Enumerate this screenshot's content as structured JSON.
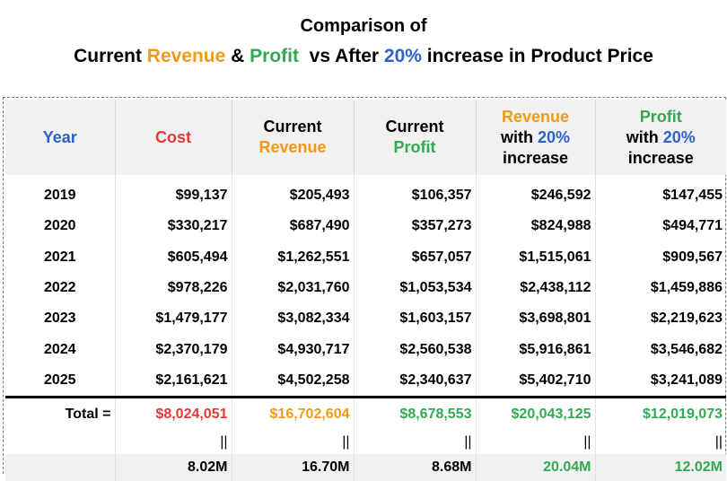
{
  "title": {
    "line1": "Comparison of",
    "part_current": "Current ",
    "part_revenue": "Revenue",
    "part_amp": " & ",
    "part_profit": "Profit",
    "part_vs": "  vs After ",
    "part_pct": "20%",
    "part_rest": " increase in Product Price"
  },
  "headers": {
    "year": "Year",
    "cost": "Cost",
    "cur_rev_1": "Current",
    "cur_rev_2": "Revenue",
    "cur_prof_1": "Current",
    "cur_prof_2": "Profit",
    "rev20_1": "Revenue",
    "rev20_2a": "with ",
    "rev20_2b": "20%",
    "rev20_3": "increase",
    "prof20_1": "Profit",
    "prof20_2a": "with ",
    "prof20_2b": "20%",
    "prof20_3": "increase"
  },
  "rows": [
    {
      "year": "2019",
      "cost": "$99,137",
      "rev": "$205,493",
      "profit": "$106,357",
      "rev20": "$246,592",
      "profit20": "$147,455"
    },
    {
      "year": "2020",
      "cost": "$330,217",
      "rev": "$687,490",
      "profit": "$357,273",
      "rev20": "$824,988",
      "profit20": "$494,771"
    },
    {
      "year": "2021",
      "cost": "$605,494",
      "rev": "$1,262,551",
      "profit": "$657,057",
      "rev20": "$1,515,061",
      "profit20": "$909,567"
    },
    {
      "year": "2022",
      "cost": "$978,226",
      "rev": "$2,031,760",
      "profit": "$1,053,534",
      "rev20": "$2,438,112",
      "profit20": "$1,459,886"
    },
    {
      "year": "2023",
      "cost": "$1,479,177",
      "rev": "$3,082,334",
      "profit": "$1,603,157",
      "rev20": "$3,698,801",
      "profit20": "$2,219,623"
    },
    {
      "year": "2024",
      "cost": "$2,370,179",
      "rev": "$4,930,717",
      "profit": "$2,560,538",
      "rev20": "$5,916,861",
      "profit20": "$3,546,682"
    },
    {
      "year": "2025",
      "cost": "$2,161,621",
      "rev": "$4,502,258",
      "profit": "$2,340,637",
      "rev20": "$5,402,710",
      "profit20": "$3,241,089"
    }
  ],
  "totals": {
    "label": "Total =",
    "cost": "$8,024,051",
    "rev": "$16,702,604",
    "profit": "$8,678,553",
    "rev20": "$20,043,125",
    "profit20": "$12,019,073"
  },
  "equals_symbol": "||",
  "millions": {
    "cost": "8.02M",
    "rev": "16.70M",
    "profit": "8.68M",
    "rev20": "20.04M",
    "profit20": "12.02M"
  },
  "colors": {
    "blue": "#2d62c9",
    "orange": "#f29a17",
    "green": "#34a853",
    "red": "#e53935"
  },
  "chart_data": {
    "type": "table",
    "title": "Comparison of Current Revenue & Profit vs After 20% increase in Product Price",
    "columns": [
      "Year",
      "Cost",
      "Current Revenue",
      "Current Profit",
      "Revenue with 20% increase",
      "Profit with 20% increase"
    ],
    "categories": [
      "2019",
      "2020",
      "2021",
      "2022",
      "2023",
      "2024",
      "2025"
    ],
    "series": [
      {
        "name": "Cost",
        "values": [
          99137,
          330217,
          605494,
          978226,
          1479177,
          2370179,
          2161621
        ]
      },
      {
        "name": "Current Revenue",
        "values": [
          205493,
          687490,
          1262551,
          2031760,
          3082334,
          4930717,
          4502258
        ]
      },
      {
        "name": "Current Profit",
        "values": [
          106357,
          357273,
          657057,
          1053534,
          1603157,
          2560538,
          2340637
        ]
      },
      {
        "name": "Revenue with 20% increase",
        "values": [
          246592,
          824988,
          1515061,
          2438112,
          3698801,
          5916861,
          5402710
        ]
      },
      {
        "name": "Profit with 20% increase",
        "values": [
          147455,
          494771,
          909567,
          1459886,
          2219623,
          3546682,
          3241089
        ]
      }
    ],
    "totals": [
      8024051,
      16702604,
      8678553,
      20043125,
      12019073
    ]
  }
}
